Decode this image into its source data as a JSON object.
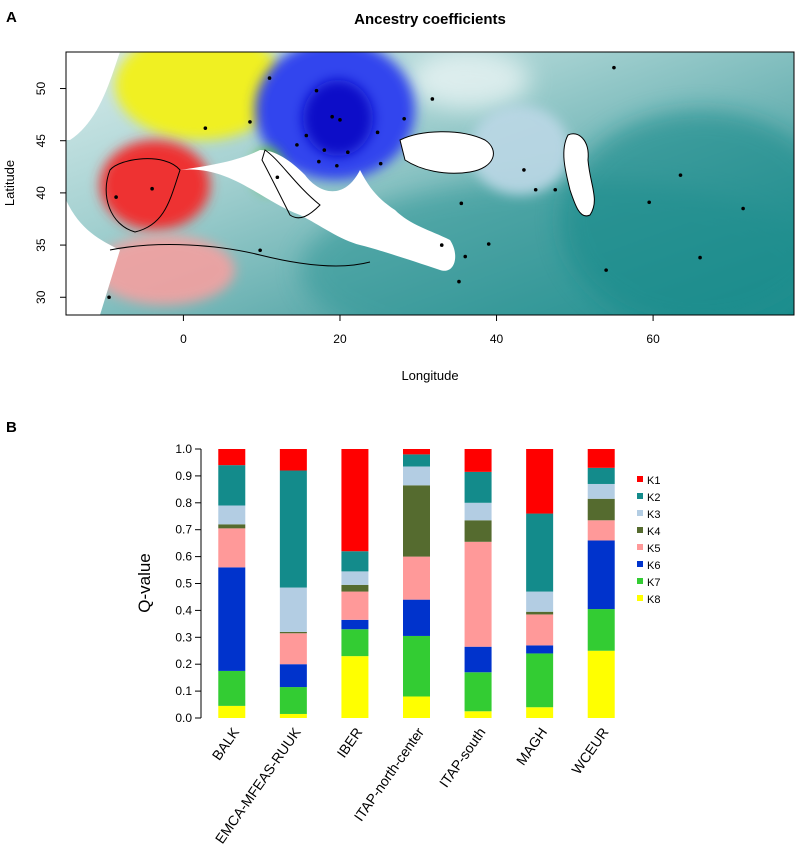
{
  "panels": {
    "a": {
      "letter": "A"
    },
    "b": {
      "letter": "B"
    }
  },
  "chart_data": [
    {
      "type": "heatmap",
      "title": "Ancestry coefficients",
      "xlabel": "Longitude",
      "ylabel": "Latitude",
      "xlim": [
        -15,
        78
      ],
      "ylim": [
        28.3,
        53.5
      ],
      "x_ticks": [
        0,
        20,
        40,
        60
      ],
      "y_ticks": [
        30,
        35,
        40,
        45,
        50
      ],
      "colors": {
        "background_teal": "#8cc4c6",
        "teal_dark": "#16898a",
        "yellow": "#eeee22",
        "blue": "#1a22dd",
        "red": "#ee2222",
        "pink": "#f4a0a0",
        "green": "#44bb22",
        "dark_green": "#2a5a22",
        "light_blue": "#aaccdd"
      },
      "samples": [
        {
          "lon": 11.0,
          "lat": 51.0
        },
        {
          "lon": 8.5,
          "lat": 46.8
        },
        {
          "lon": 2.8,
          "lat": 46.2
        },
        {
          "lon": 17.0,
          "lat": 49.8
        },
        {
          "lon": 19.0,
          "lat": 47.3
        },
        {
          "lon": 20.0,
          "lat": 47.0
        },
        {
          "lon": 24.8,
          "lat": 45.8
        },
        {
          "lon": 21.0,
          "lat": 43.9
        },
        {
          "lon": 25.2,
          "lat": 42.8
        },
        {
          "lon": 19.6,
          "lat": 42.6
        },
        {
          "lon": 17.3,
          "lat": 43.0
        },
        {
          "lon": 14.5,
          "lat": 44.6
        },
        {
          "lon": 15.7,
          "lat": 45.5
        },
        {
          "lon": 18.0,
          "lat": 44.1
        },
        {
          "lon": 28.2,
          "lat": 47.1
        },
        {
          "lon": 31.8,
          "lat": 49.0
        },
        {
          "lon": 55.0,
          "lat": 52.0
        },
        {
          "lon": 43.5,
          "lat": 42.2
        },
        {
          "lon": 45.0,
          "lat": 40.3
        },
        {
          "lon": 47.5,
          "lat": 40.3
        },
        {
          "lon": 59.5,
          "lat": 39.1
        },
        {
          "lon": 63.5,
          "lat": 41.7
        },
        {
          "lon": 71.5,
          "lat": 38.5
        },
        {
          "lon": 66.0,
          "lat": 33.8
        },
        {
          "lon": 54.0,
          "lat": 32.6
        },
        {
          "lon": 35.5,
          "lat": 39.0
        },
        {
          "lon": 33.0,
          "lat": 35.0
        },
        {
          "lon": 36.0,
          "lat": 33.9
        },
        {
          "lon": 39.0,
          "lat": 35.1
        },
        {
          "lon": 35.2,
          "lat": 31.5
        },
        {
          "lon": 12.0,
          "lat": 41.5
        },
        {
          "lon": 9.8,
          "lat": 34.5
        },
        {
          "lon": -4.0,
          "lat": 40.4
        },
        {
          "lon": -8.6,
          "lat": 39.6
        },
        {
          "lon": -9.5,
          "lat": 30.0
        }
      ]
    },
    {
      "type": "bar",
      "stacked": true,
      "ylabel": "Q-value",
      "ylim": [
        0,
        1.0
      ],
      "y_ticks": [
        "0.0",
        "0.1",
        "0.2",
        "0.3",
        "0.4",
        "0.5",
        "0.6",
        "0.7",
        "0.8",
        "0.9",
        "1.0"
      ],
      "categories": [
        "BALK",
        "EMCA-MFEAS-RUUK",
        "IBER",
        "ITAP-north-center",
        "ITAP-south",
        "MAGH",
        "WCEUR"
      ],
      "legend_position": "right",
      "series": [
        {
          "name": "K8",
          "color": "#ffff00",
          "values": [
            0.045,
            0.015,
            0.23,
            0.08,
            0.025,
            0.04,
            0.25
          ]
        },
        {
          "name": "K7",
          "color": "#33cc33",
          "values": [
            0.13,
            0.1,
            0.1,
            0.225,
            0.145,
            0.2,
            0.155
          ]
        },
        {
          "name": "K6",
          "color": "#0033cc",
          "values": [
            0.385,
            0.085,
            0.035,
            0.135,
            0.095,
            0.03,
            0.255
          ]
        },
        {
          "name": "K5",
          "color": "#ff9999",
          "values": [
            0.145,
            0.115,
            0.105,
            0.16,
            0.39,
            0.115,
            0.075
          ]
        },
        {
          "name": "K4",
          "color": "#556b2f",
          "values": [
            0.015,
            0.005,
            0.025,
            0.265,
            0.08,
            0.01,
            0.08
          ]
        },
        {
          "name": "K3",
          "color": "#b3cde3",
          "values": [
            0.07,
            0.165,
            0.05,
            0.07,
            0.065,
            0.075,
            0.055
          ]
        },
        {
          "name": "K2",
          "color": "#138b8b",
          "values": [
            0.15,
            0.435,
            0.075,
            0.045,
            0.115,
            0.29,
            0.06
          ]
        },
        {
          "name": "K1",
          "color": "#ff0000",
          "values": [
            0.06,
            0.08,
            0.38,
            0.02,
            0.085,
            0.24,
            0.07
          ]
        }
      ],
      "legend_order": [
        "K1",
        "K2",
        "K3",
        "K4",
        "K5",
        "K6",
        "K7",
        "K8"
      ]
    }
  ]
}
